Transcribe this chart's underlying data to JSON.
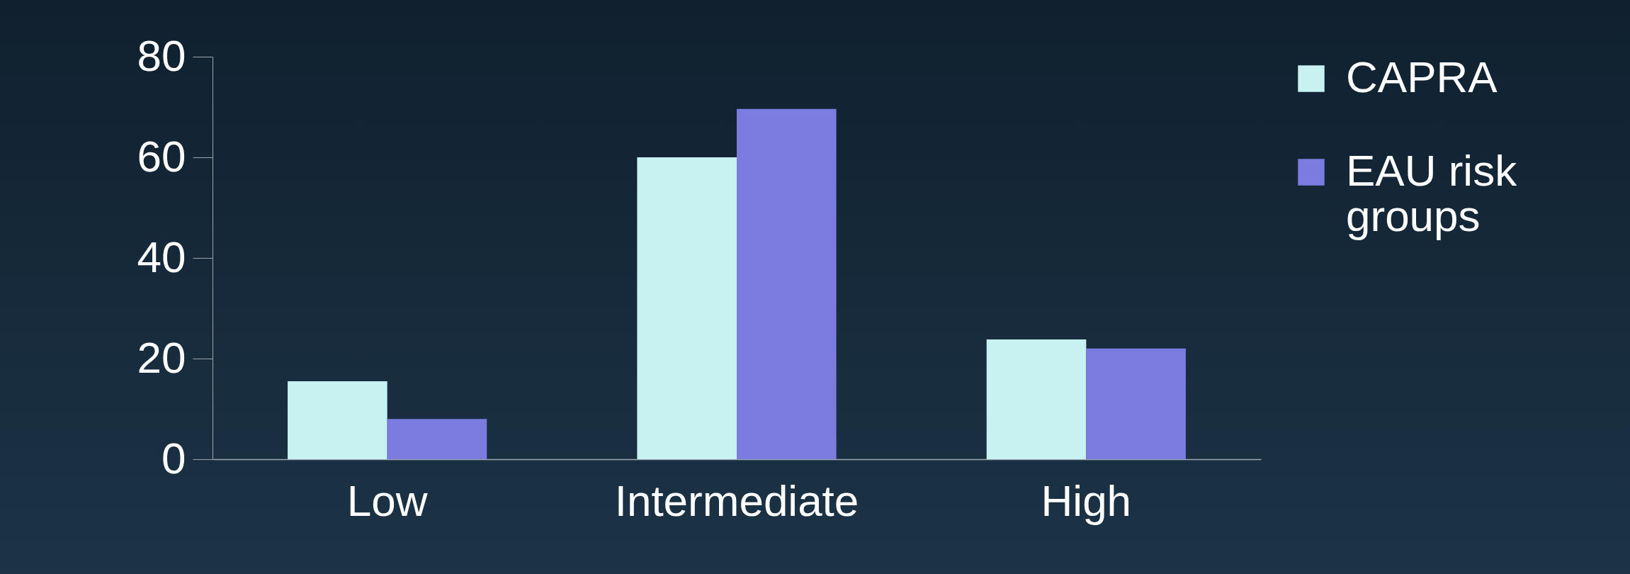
{
  "chart_data": {
    "type": "bar",
    "categories": [
      "Low",
      "Intermediate",
      "High"
    ],
    "series": [
      {
        "name": "CAPRA",
        "color": "#c8f2f2",
        "values": [
          15.5,
          60,
          23.8
        ]
      },
      {
        "name": "EAU risk groups",
        "color": "#7c7ce0",
        "values": [
          8,
          69.6,
          22
        ]
      }
    ],
    "ylim": [
      0,
      80
    ],
    "yticks": [
      0,
      20,
      40,
      60,
      80
    ],
    "grid": false,
    "legend": "right"
  }
}
